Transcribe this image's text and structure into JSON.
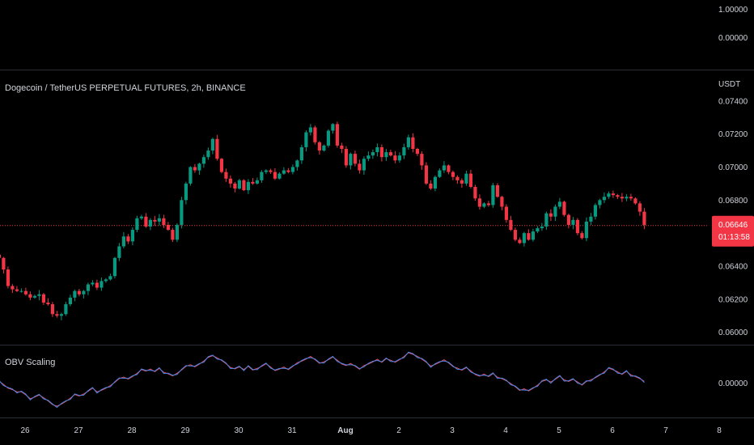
{
  "header": {
    "title": "Dogecoin / TetherUS PERPETUAL FUTURES, 2h, BINANCE",
    "currency": "USDT"
  },
  "top_pane": {
    "ticks": [
      "1.00000",
      "0.00000"
    ]
  },
  "indicator": {
    "name": "OBV Scaling",
    "tick": "0.00000",
    "obv_color": "#e04c63",
    "scaled_color": "#4a86e8"
  },
  "price_tag": {
    "price": "0.06646",
    "countdown": "01:13:58",
    "color": "#f23645"
  },
  "colors": {
    "up": "#089981",
    "down": "#f23645",
    "grid_line": "#2a2e39"
  },
  "chart_data": {
    "type": "candlestick",
    "title": "Dogecoin / TetherUS PERPETUAL FUTURES, 2h, BINANCE",
    "ylabel": "USDT",
    "ylim": [
      0.0593,
      0.0758
    ],
    "y_ticks": [
      "0.07400",
      "0.07200",
      "0.07000",
      "0.06800",
      "0.06600",
      "0.06400",
      "0.06200",
      "0.06000"
    ],
    "x_ticks": [
      "26",
      "27",
      "28",
      "29",
      "30",
      "31",
      "Aug",
      "2",
      "3",
      "4",
      "5",
      "6",
      "7",
      "8"
    ],
    "x_tick_positions_day": [
      0,
      1,
      2,
      3,
      4,
      5,
      6,
      7,
      8,
      9,
      10,
      11,
      12,
      13
    ],
    "candles_per_day": 12,
    "first_candle_day": -0.35,
    "last_price": 0.06646,
    "closes": [
      0.0648,
      0.0647,
      0.0645,
      0.0638,
      0.0628,
      0.0626,
      0.0625,
      0.0625,
      0.0623,
      0.0621,
      0.0622,
      0.0623,
      0.0618,
      0.0617,
      0.0611,
      0.061,
      0.0611,
      0.0617,
      0.0621,
      0.0625,
      0.0623,
      0.0625,
      0.0629,
      0.063,
      0.0627,
      0.0631,
      0.0632,
      0.0634,
      0.0645,
      0.0652,
      0.0658,
      0.0655,
      0.0662,
      0.0669,
      0.067,
      0.0664,
      0.0668,
      0.0667,
      0.0669,
      0.0665,
      0.0662,
      0.0656,
      0.0665,
      0.068,
      0.069,
      0.07,
      0.0698,
      0.0702,
      0.0706,
      0.071,
      0.0717,
      0.0705,
      0.0697,
      0.0693,
      0.069,
      0.0687,
      0.0692,
      0.0686,
      0.0691,
      0.069,
      0.0692,
      0.0697,
      0.0698,
      0.0697,
      0.0693,
      0.0696,
      0.0698,
      0.0697,
      0.07,
      0.0704,
      0.0712,
      0.0721,
      0.0724,
      0.0715,
      0.071,
      0.0713,
      0.0722,
      0.0726,
      0.0713,
      0.0711,
      0.0701,
      0.0708,
      0.0702,
      0.0698,
      0.0705,
      0.0707,
      0.0709,
      0.0712,
      0.0706,
      0.0709,
      0.0707,
      0.0704,
      0.0707,
      0.0712,
      0.0718,
      0.0711,
      0.0708,
      0.0701,
      0.069,
      0.0687,
      0.0694,
      0.0698,
      0.0701,
      0.0697,
      0.0694,
      0.0692,
      0.069,
      0.0696,
      0.0688,
      0.0681,
      0.0676,
      0.0678,
      0.0677,
      0.0689,
      0.0682,
      0.0676,
      0.0668,
      0.0662,
      0.0656,
      0.0654,
      0.066,
      0.0656,
      0.0661,
      0.0663,
      0.0664,
      0.0672,
      0.067,
      0.0676,
      0.0679,
      0.0671,
      0.0665,
      0.0668,
      0.066,
      0.0657,
      0.0667,
      0.067,
      0.0677,
      0.068,
      0.0682,
      0.0684,
      0.0683,
      0.0682,
      0.0681,
      0.0682,
      0.0681,
      0.0678,
      0.0673,
      0.0665
    ]
  }
}
